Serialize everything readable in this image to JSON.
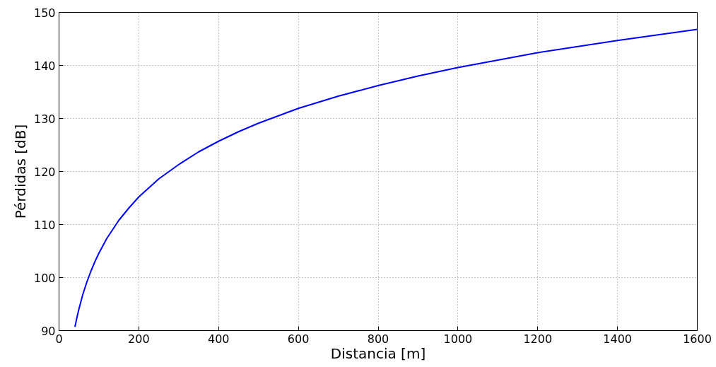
{
  "chart_data": {
    "type": "line",
    "xlabel": "Distancia [m]",
    "ylabel": "Pérdidas [dB]",
    "x": [
      40,
      45,
      50,
      60,
      70,
      80,
      90,
      100,
      120,
      150,
      175,
      200,
      250,
      300,
      350,
      400,
      450,
      500,
      600,
      700,
      800,
      900,
      1000,
      1200,
      1400,
      1600
    ],
    "series": [
      {
        "color": "#0000ff",
        "values": [
          90.7,
          92.5,
          94.1,
          96.9,
          99.2,
          101.2,
          103.0,
          104.6,
          107.4,
          110.8,
          113.1,
          115.2,
          118.6,
          121.3,
          123.7,
          125.7,
          127.5,
          129.1,
          131.9,
          134.2,
          136.2,
          138.0,
          139.6,
          142.4,
          144.7,
          146.8
        ]
      }
    ],
    "xlim": [
      0,
      1600
    ],
    "ylim": [
      90,
      150
    ],
    "xticks": [
      0,
      200,
      400,
      600,
      800,
      1000,
      1200,
      1400,
      1600
    ],
    "yticks": [
      90,
      100,
      110,
      120,
      130,
      140,
      150
    ],
    "grid": true,
    "line_style": "solid",
    "marker": "none"
  }
}
